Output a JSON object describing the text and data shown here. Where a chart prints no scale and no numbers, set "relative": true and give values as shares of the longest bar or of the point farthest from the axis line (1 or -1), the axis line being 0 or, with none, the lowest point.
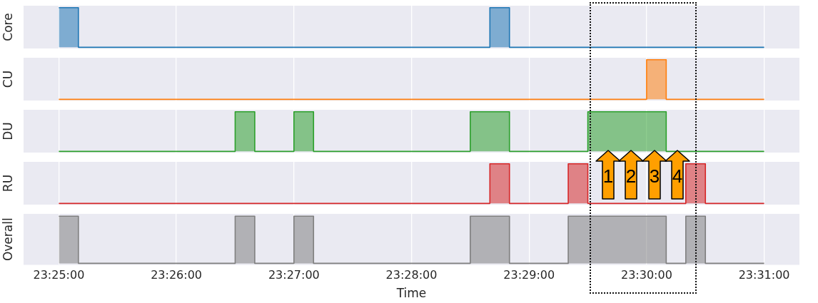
{
  "chart_data": [
    {
      "type": "step",
      "ylabel": "Core",
      "relative": true,
      "grid": "x",
      "legend": false,
      "tick_labels": false,
      "xlim": [
        23.411667,
        23.521667
      ],
      "xticks": [
        {
          "value": 23.416667,
          "label": null
        },
        {
          "value": 23.433333,
          "label": null
        },
        {
          "value": 23.45,
          "label": null
        },
        {
          "value": 23.466667,
          "label": null
        },
        {
          "value": 23.483333,
          "label": null
        },
        {
          "value": 23.5,
          "label": null
        },
        {
          "value": 23.516667,
          "label": null
        }
      ],
      "series": [
        {
          "color": "#1f77b4",
          "x": [
            23.416667,
            23.419444,
            23.477778,
            23.480556,
            23.516667
          ],
          "values": [
            1,
            0,
            1,
            0,
            0
          ]
        }
      ]
    },
    {
      "type": "step",
      "ylabel": "CU",
      "relative": true,
      "grid": "x",
      "legend": false,
      "tick_labels": false,
      "xlim": [
        23.411667,
        23.521667
      ],
      "xticks": [
        {
          "value": 23.416667,
          "label": null
        },
        {
          "value": 23.433333,
          "label": null
        },
        {
          "value": 23.45,
          "label": null
        },
        {
          "value": 23.466667,
          "label": null
        },
        {
          "value": 23.483333,
          "label": null
        },
        {
          "value": 23.5,
          "label": null
        },
        {
          "value": 23.516667,
          "label": null
        }
      ],
      "series": [
        {
          "color": "#ff7f0e",
          "x": [
            23.416667,
            23.5,
            23.502778,
            23.516667
          ],
          "values": [
            0,
            1,
            0,
            0
          ]
        }
      ]
    },
    {
      "type": "step",
      "ylabel": "DU",
      "relative": true,
      "grid": "x",
      "legend": false,
      "tick_labels": false,
      "xlim": [
        23.411667,
        23.521667
      ],
      "xticks": [
        {
          "value": 23.416667,
          "label": null
        },
        {
          "value": 23.433333,
          "label": null
        },
        {
          "value": 23.45,
          "label": null
        },
        {
          "value": 23.466667,
          "label": null
        },
        {
          "value": 23.483333,
          "label": null
        },
        {
          "value": 23.5,
          "label": null
        },
        {
          "value": 23.516667,
          "label": null
        }
      ],
      "series": [
        {
          "color": "#2ca02c",
          "x": [
            23.416667,
            23.441667,
            23.444444,
            23.45,
            23.452778,
            23.475,
            23.480556,
            23.491667,
            23.502778,
            23.516667
          ],
          "values": [
            0,
            1,
            0,
            1,
            0,
            1,
            0,
            1,
            0,
            0
          ]
        }
      ]
    },
    {
      "type": "step",
      "ylabel": "RU",
      "relative": true,
      "grid": "x",
      "legend": false,
      "tick_labels": false,
      "xlim": [
        23.411667,
        23.521667
      ],
      "xticks": [
        {
          "value": 23.416667,
          "label": null
        },
        {
          "value": 23.433333,
          "label": null
        },
        {
          "value": 23.45,
          "label": null
        },
        {
          "value": 23.466667,
          "label": null
        },
        {
          "value": 23.483333,
          "label": null
        },
        {
          "value": 23.5,
          "label": null
        },
        {
          "value": 23.516667,
          "label": null
        }
      ],
      "annotations": [
        "1",
        "2",
        "3",
        "4"
      ],
      "series": [
        {
          "color": "#d62728",
          "x": [
            23.416667,
            23.477778,
            23.480556,
            23.488889,
            23.491667,
            23.505556,
            23.508333,
            23.516667
          ],
          "values": [
            0,
            1,
            0,
            1,
            0,
            1,
            0,
            0
          ]
        }
      ]
    },
    {
      "type": "step",
      "ylabel": "Overall",
      "xlabel": "Time",
      "relative": true,
      "grid": "x",
      "legend": false,
      "tick_labels": "x",
      "xlim": [
        23.411667,
        23.521667
      ],
      "xticks": [
        {
          "value": 23.416667,
          "label": "23:25:00"
        },
        {
          "value": 23.433333,
          "label": "23:26:00"
        },
        {
          "value": 23.45,
          "label": "23:27:00"
        },
        {
          "value": 23.466667,
          "label": "23:28:00"
        },
        {
          "value": 23.483333,
          "label": "23:29:00"
        },
        {
          "value": 23.5,
          "label": "23:30:00"
        },
        {
          "value": 23.516667,
          "label": "23:31:00"
        }
      ],
      "series": [
        {
          "color": "#7f7f7f",
          "x": [
            23.416667,
            23.419444,
            23.441667,
            23.444444,
            23.45,
            23.452778,
            23.475,
            23.480556,
            23.488889,
            23.502778,
            23.505556,
            23.508333,
            23.516667
          ],
          "values": [
            1,
            0,
            1,
            0,
            1,
            0,
            1,
            0,
            1,
            0,
            1,
            0,
            0
          ]
        }
      ]
    }
  ]
}
